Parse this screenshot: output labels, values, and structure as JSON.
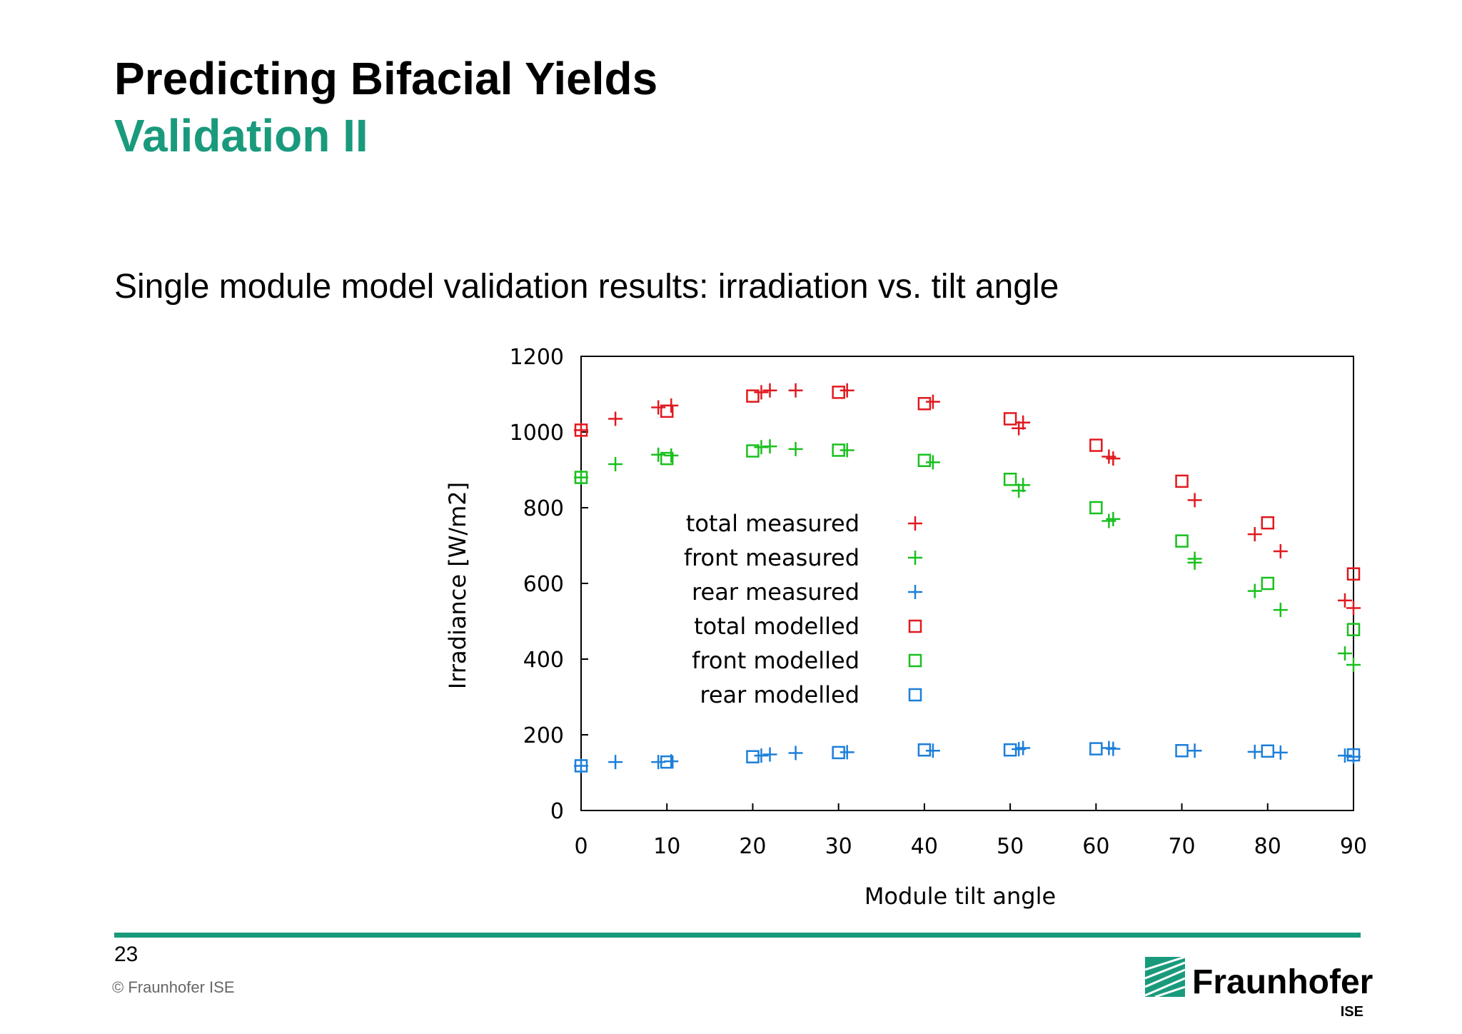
{
  "slide": {
    "title": "Predicting Bifacial Yields",
    "subtitle": "Validation II",
    "lead": "Single module model validation results: irradiation vs. tilt angle",
    "page_number": "23",
    "copyright": "© Fraunhofer ISE",
    "logo_name": "Fraunhofer",
    "logo_sub": "ISE",
    "accent_color": "#1a9a7c"
  },
  "chart_data": {
    "type": "scatter",
    "title": "",
    "xlabel": "Module tilt angle",
    "ylabel": "Irradiance [W/m2]",
    "xlim": [
      0,
      90
    ],
    "ylim": [
      0,
      1200
    ],
    "xticks": [
      0,
      10,
      20,
      30,
      40,
      50,
      60,
      70,
      80,
      90
    ],
    "yticks": [
      0,
      200,
      400,
      600,
      800,
      1000,
      1200
    ],
    "grid": false,
    "legend_position": "inside-center-left",
    "series": [
      {
        "name": "total measured",
        "marker": "plus",
        "color": "#e0191f",
        "points": [
          [
            0,
            1005
          ],
          [
            4,
            1035
          ],
          [
            9,
            1065
          ],
          [
            10.5,
            1070
          ],
          [
            21,
            1105
          ],
          [
            22,
            1110
          ],
          [
            25,
            1110
          ],
          [
            31,
            1110
          ],
          [
            41,
            1080
          ],
          [
            51,
            1010
          ],
          [
            51.5,
            1025
          ],
          [
            61.5,
            935
          ],
          [
            62,
            930
          ],
          [
            71.5,
            820
          ],
          [
            78.5,
            730
          ],
          [
            81.5,
            685
          ],
          [
            89,
            555
          ],
          [
            90,
            535
          ]
        ]
      },
      {
        "name": "front measured",
        "marker": "plus",
        "color": "#19c01e",
        "points": [
          [
            0,
            880
          ],
          [
            4,
            915
          ],
          [
            9,
            940
          ],
          [
            10.5,
            938
          ],
          [
            21,
            960
          ],
          [
            22,
            962
          ],
          [
            25,
            955
          ],
          [
            31,
            952
          ],
          [
            41,
            920
          ],
          [
            51,
            845
          ],
          [
            51.5,
            860
          ],
          [
            61.5,
            765
          ],
          [
            62,
            770
          ],
          [
            71.5,
            655
          ],
          [
            71.5,
            665
          ],
          [
            78.5,
            580
          ],
          [
            81.5,
            530
          ],
          [
            89,
            415
          ],
          [
            90,
            385
          ]
        ]
      },
      {
        "name": "rear measured",
        "marker": "plus",
        "color": "#1c7fd9",
        "points": [
          [
            0,
            118
          ],
          [
            4,
            128
          ],
          [
            9,
            128
          ],
          [
            10.5,
            130
          ],
          [
            21,
            145
          ],
          [
            22,
            148
          ],
          [
            25,
            152
          ],
          [
            31,
            154
          ],
          [
            41,
            158
          ],
          [
            51,
            162
          ],
          [
            51.5,
            165
          ],
          [
            61.5,
            165
          ],
          [
            62,
            163
          ],
          [
            71.5,
            158
          ],
          [
            78.5,
            155
          ],
          [
            81.5,
            153
          ],
          [
            89,
            145
          ],
          [
            90,
            142
          ]
        ]
      },
      {
        "name": "total modelled",
        "marker": "square",
        "color": "#e0191f",
        "points": [
          [
            0,
            1005
          ],
          [
            10,
            1055
          ],
          [
            20,
            1095
          ],
          [
            30,
            1105
          ],
          [
            40,
            1075
          ],
          [
            50,
            1035
          ],
          [
            60,
            965
          ],
          [
            70,
            870
          ],
          [
            80,
            760
          ],
          [
            90,
            625
          ]
        ]
      },
      {
        "name": "front modelled",
        "marker": "square",
        "color": "#19c01e",
        "points": [
          [
            0,
            880
          ],
          [
            10,
            930
          ],
          [
            20,
            950
          ],
          [
            30,
            952
          ],
          [
            40,
            925
          ],
          [
            50,
            875
          ],
          [
            60,
            800
          ],
          [
            70,
            712
          ],
          [
            80,
            600
          ],
          [
            90,
            478
          ]
        ]
      },
      {
        "name": "rear modelled",
        "marker": "square",
        "color": "#1c7fd9",
        "points": [
          [
            0,
            118
          ],
          [
            10,
            128
          ],
          [
            20,
            142
          ],
          [
            30,
            153
          ],
          [
            40,
            160
          ],
          [
            50,
            160
          ],
          [
            60,
            163
          ],
          [
            70,
            158
          ],
          [
            80,
            157
          ],
          [
            90,
            147
          ]
        ]
      }
    ]
  }
}
